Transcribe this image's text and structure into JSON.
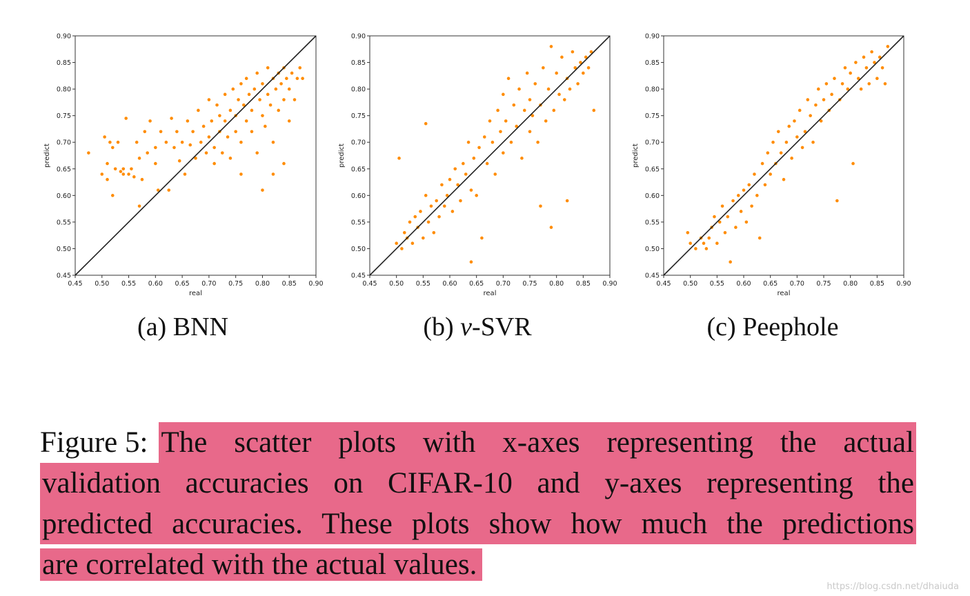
{
  "chart_data": [
    {
      "type": "scatter",
      "title": "",
      "subcaption": "(a) BNN",
      "subcaption_prefix": "(a) ",
      "subcaption_name": "BNN",
      "xlabel": "real",
      "ylabel": "predict",
      "xlim": [
        0.45,
        0.9
      ],
      "ylim": [
        0.45,
        0.9
      ],
      "xticks": [
        "0.45",
        "0.50",
        "0.55",
        "0.60",
        "0.65",
        "0.70",
        "0.75",
        "0.80",
        "0.85",
        "0.90"
      ],
      "yticks": [
        "0.45",
        "0.50",
        "0.55",
        "0.60",
        "0.65",
        "0.70",
        "0.75",
        "0.80",
        "0.85",
        "0.90"
      ],
      "reference_line": [
        [
          0.45,
          0.45
        ],
        [
          0.9,
          0.9
        ]
      ],
      "point_color": "#ff8c00",
      "points": [
        [
          0.475,
          0.68
        ],
        [
          0.5,
          0.64
        ],
        [
          0.505,
          0.71
        ],
        [
          0.51,
          0.66
        ],
        [
          0.51,
          0.63
        ],
        [
          0.515,
          0.7
        ],
        [
          0.52,
          0.69
        ],
        [
          0.52,
          0.6
        ],
        [
          0.525,
          0.65
        ],
        [
          0.53,
          0.7
        ],
        [
          0.535,
          0.645
        ],
        [
          0.54,
          0.64
        ],
        [
          0.54,
          0.65
        ],
        [
          0.545,
          0.745
        ],
        [
          0.55,
          0.64
        ],
        [
          0.555,
          0.65
        ],
        [
          0.56,
          0.635
        ],
        [
          0.565,
          0.7
        ],
        [
          0.57,
          0.67
        ],
        [
          0.57,
          0.58
        ],
        [
          0.575,
          0.63
        ],
        [
          0.58,
          0.72
        ],
        [
          0.585,
          0.68
        ],
        [
          0.59,
          0.74
        ],
        [
          0.6,
          0.66
        ],
        [
          0.6,
          0.69
        ],
        [
          0.605,
          0.61
        ],
        [
          0.61,
          0.72
        ],
        [
          0.62,
          0.7
        ],
        [
          0.625,
          0.61
        ],
        [
          0.63,
          0.745
        ],
        [
          0.635,
          0.69
        ],
        [
          0.64,
          0.72
        ],
        [
          0.645,
          0.665
        ],
        [
          0.65,
          0.7
        ],
        [
          0.655,
          0.64
        ],
        [
          0.66,
          0.74
        ],
        [
          0.665,
          0.695
        ],
        [
          0.67,
          0.72
        ],
        [
          0.675,
          0.67
        ],
        [
          0.68,
          0.76
        ],
        [
          0.685,
          0.7
        ],
        [
          0.69,
          0.73
        ],
        [
          0.695,
          0.68
        ],
        [
          0.7,
          0.78
        ],
        [
          0.7,
          0.71
        ],
        [
          0.705,
          0.74
        ],
        [
          0.71,
          0.69
        ],
        [
          0.71,
          0.66
        ],
        [
          0.715,
          0.77
        ],
        [
          0.72,
          0.72
        ],
        [
          0.72,
          0.75
        ],
        [
          0.725,
          0.68
        ],
        [
          0.73,
          0.79
        ],
        [
          0.73,
          0.74
        ],
        [
          0.735,
          0.71
        ],
        [
          0.74,
          0.76
        ],
        [
          0.74,
          0.67
        ],
        [
          0.745,
          0.8
        ],
        [
          0.75,
          0.75
        ],
        [
          0.75,
          0.72
        ],
        [
          0.755,
          0.78
        ],
        [
          0.76,
          0.81
        ],
        [
          0.76,
          0.7
        ],
        [
          0.765,
          0.77
        ],
        [
          0.77,
          0.74
        ],
        [
          0.77,
          0.82
        ],
        [
          0.775,
          0.79
        ],
        [
          0.78,
          0.76
        ],
        [
          0.78,
          0.72
        ],
        [
          0.785,
          0.8
        ],
        [
          0.79,
          0.83
        ],
        [
          0.79,
          0.68
        ],
        [
          0.795,
          0.78
        ],
        [
          0.8,
          0.81
        ],
        [
          0.8,
          0.75
        ],
        [
          0.805,
          0.73
        ],
        [
          0.81,
          0.84
        ],
        [
          0.81,
          0.79
        ],
        [
          0.815,
          0.77
        ],
        [
          0.82,
          0.82
        ],
        [
          0.82,
          0.7
        ],
        [
          0.825,
          0.8
        ],
        [
          0.83,
          0.83
        ],
        [
          0.83,
          0.76
        ],
        [
          0.835,
          0.81
        ],
        [
          0.84,
          0.84
        ],
        [
          0.84,
          0.78
        ],
        [
          0.845,
          0.82
        ],
        [
          0.85,
          0.8
        ],
        [
          0.85,
          0.74
        ],
        [
          0.855,
          0.83
        ],
        [
          0.86,
          0.78
        ],
        [
          0.865,
          0.82
        ],
        [
          0.87,
          0.84
        ],
        [
          0.875,
          0.82
        ],
        [
          0.8,
          0.61
        ],
        [
          0.82,
          0.64
        ],
        [
          0.76,
          0.64
        ],
        [
          0.84,
          0.66
        ]
      ]
    },
    {
      "type": "scatter",
      "title": "",
      "subcaption": "(b) v-SVR",
      "subcaption_prefix": "(b) ",
      "subcaption_name": "v",
      "subcaption_suffix": "-SVR",
      "xlabel": "real",
      "ylabel": "predict",
      "xlim": [
        0.45,
        0.9
      ],
      "ylim": [
        0.45,
        0.9
      ],
      "xticks": [
        "0.45",
        "0.50",
        "0.55",
        "0.60",
        "0.65",
        "0.70",
        "0.75",
        "0.80",
        "0.85",
        "0.90"
      ],
      "yticks": [
        "0.45",
        "0.50",
        "0.55",
        "0.60",
        "0.65",
        "0.70",
        "0.75",
        "0.80",
        "0.85",
        "0.90"
      ],
      "reference_line": [
        [
          0.45,
          0.45
        ],
        [
          0.9,
          0.9
        ]
      ],
      "point_color": "#ff8c00",
      "points": [
        [
          0.5,
          0.51
        ],
        [
          0.505,
          0.67
        ],
        [
          0.51,
          0.5
        ],
        [
          0.515,
          0.53
        ],
        [
          0.52,
          0.52
        ],
        [
          0.525,
          0.55
        ],
        [
          0.53,
          0.51
        ],
        [
          0.535,
          0.56
        ],
        [
          0.54,
          0.54
        ],
        [
          0.545,
          0.57
        ],
        [
          0.55,
          0.52
        ],
        [
          0.555,
          0.735
        ],
        [
          0.555,
          0.6
        ],
        [
          0.56,
          0.55
        ],
        [
          0.565,
          0.58
        ],
        [
          0.57,
          0.53
        ],
        [
          0.575,
          0.59
        ],
        [
          0.58,
          0.56
        ],
        [
          0.585,
          0.62
        ],
        [
          0.59,
          0.58
        ],
        [
          0.595,
          0.6
        ],
        [
          0.6,
          0.63
        ],
        [
          0.605,
          0.57
        ],
        [
          0.61,
          0.65
        ],
        [
          0.615,
          0.62
        ],
        [
          0.62,
          0.59
        ],
        [
          0.625,
          0.66
        ],
        [
          0.63,
          0.64
        ],
        [
          0.635,
          0.7
        ],
        [
          0.64,
          0.61
        ],
        [
          0.645,
          0.67
        ],
        [
          0.65,
          0.6
        ],
        [
          0.655,
          0.69
        ],
        [
          0.66,
          0.52
        ],
        [
          0.665,
          0.71
        ],
        [
          0.67,
          0.66
        ],
        [
          0.675,
          0.74
        ],
        [
          0.68,
          0.7
        ],
        [
          0.685,
          0.64
        ],
        [
          0.69,
          0.76
        ],
        [
          0.695,
          0.72
        ],
        [
          0.7,
          0.79
        ],
        [
          0.7,
          0.68
        ],
        [
          0.705,
          0.74
        ],
        [
          0.71,
          0.82
        ],
        [
          0.715,
          0.7
        ],
        [
          0.72,
          0.77
        ],
        [
          0.725,
          0.73
        ],
        [
          0.73,
          0.8
        ],
        [
          0.735,
          0.67
        ],
        [
          0.74,
          0.76
        ],
        [
          0.745,
          0.83
        ],
        [
          0.75,
          0.72
        ],
        [
          0.75,
          0.78
        ],
        [
          0.755,
          0.75
        ],
        [
          0.76,
          0.81
        ],
        [
          0.765,
          0.7
        ],
        [
          0.77,
          0.77
        ],
        [
          0.775,
          0.84
        ],
        [
          0.78,
          0.74
        ],
        [
          0.785,
          0.8
        ],
        [
          0.79,
          0.88
        ],
        [
          0.79,
          0.54
        ],
        [
          0.795,
          0.76
        ],
        [
          0.8,
          0.83
        ],
        [
          0.805,
          0.79
        ],
        [
          0.81,
          0.86
        ],
        [
          0.815,
          0.78
        ],
        [
          0.82,
          0.82
        ],
        [
          0.82,
          0.59
        ],
        [
          0.825,
          0.8
        ],
        [
          0.83,
          0.87
        ],
        [
          0.835,
          0.84
        ],
        [
          0.84,
          0.81
        ],
        [
          0.845,
          0.85
        ],
        [
          0.85,
          0.83
        ],
        [
          0.855,
          0.86
        ],
        [
          0.86,
          0.84
        ],
        [
          0.865,
          0.87
        ],
        [
          0.87,
          0.76
        ],
        [
          0.64,
          0.475
        ],
        [
          0.77,
          0.58
        ]
      ]
    },
    {
      "type": "scatter",
      "title": "",
      "subcaption": "(c) Peephole",
      "subcaption_prefix": "(c) ",
      "subcaption_name": "Peephole",
      "xlabel": "real",
      "ylabel": "predict",
      "xlim": [
        0.45,
        0.9
      ],
      "ylim": [
        0.45,
        0.9
      ],
      "xticks": [
        "0.45",
        "0.50",
        "0.55",
        "0.60",
        "0.65",
        "0.70",
        "0.75",
        "0.80",
        "0.85",
        "0.90"
      ],
      "yticks": [
        "0.45",
        "0.50",
        "0.55",
        "0.60",
        "0.65",
        "0.70",
        "0.75",
        "0.80",
        "0.85",
        "0.90"
      ],
      "reference_line": [
        [
          0.45,
          0.45
        ],
        [
          0.9,
          0.9
        ]
      ],
      "point_color": "#ff8c00",
      "points": [
        [
          0.495,
          0.53
        ],
        [
          0.5,
          0.51
        ],
        [
          0.51,
          0.5
        ],
        [
          0.52,
          0.52
        ],
        [
          0.525,
          0.51
        ],
        [
          0.53,
          0.5
        ],
        [
          0.535,
          0.52
        ],
        [
          0.54,
          0.54
        ],
        [
          0.545,
          0.56
        ],
        [
          0.55,
          0.51
        ],
        [
          0.555,
          0.55
        ],
        [
          0.56,
          0.58
        ],
        [
          0.565,
          0.53
        ],
        [
          0.57,
          0.56
        ],
        [
          0.575,
          0.475
        ],
        [
          0.58,
          0.59
        ],
        [
          0.585,
          0.54
        ],
        [
          0.59,
          0.6
        ],
        [
          0.595,
          0.57
        ],
        [
          0.6,
          0.61
        ],
        [
          0.605,
          0.55
        ],
        [
          0.61,
          0.62
        ],
        [
          0.615,
          0.58
        ],
        [
          0.62,
          0.64
        ],
        [
          0.625,
          0.6
        ],
        [
          0.63,
          0.52
        ],
        [
          0.635,
          0.66
        ],
        [
          0.64,
          0.62
        ],
        [
          0.645,
          0.68
        ],
        [
          0.65,
          0.64
        ],
        [
          0.655,
          0.7
        ],
        [
          0.66,
          0.66
        ],
        [
          0.665,
          0.72
        ],
        [
          0.67,
          0.68
        ],
        [
          0.675,
          0.63
        ],
        [
          0.68,
          0.7
        ],
        [
          0.685,
          0.73
        ],
        [
          0.69,
          0.67
        ],
        [
          0.695,
          0.74
        ],
        [
          0.7,
          0.71
        ],
        [
          0.705,
          0.76
        ],
        [
          0.71,
          0.69
        ],
        [
          0.715,
          0.72
        ],
        [
          0.72,
          0.78
        ],
        [
          0.725,
          0.75
        ],
        [
          0.73,
          0.7
        ],
        [
          0.735,
          0.77
        ],
        [
          0.74,
          0.8
        ],
        [
          0.745,
          0.74
        ],
        [
          0.75,
          0.78
        ],
        [
          0.755,
          0.81
        ],
        [
          0.76,
          0.76
        ],
        [
          0.765,
          0.79
        ],
        [
          0.77,
          0.82
        ],
        [
          0.775,
          0.59
        ],
        [
          0.78,
          0.78
        ],
        [
          0.785,
          0.81
        ],
        [
          0.79,
          0.84
        ],
        [
          0.795,
          0.8
        ],
        [
          0.8,
          0.83
        ],
        [
          0.805,
          0.66
        ],
        [
          0.81,
          0.85
        ],
        [
          0.815,
          0.82
        ],
        [
          0.82,
          0.8
        ],
        [
          0.825,
          0.86
        ],
        [
          0.83,
          0.84
        ],
        [
          0.835,
          0.81
        ],
        [
          0.84,
          0.87
        ],
        [
          0.845,
          0.85
        ],
        [
          0.85,
          0.82
        ],
        [
          0.855,
          0.86
        ],
        [
          0.86,
          0.84
        ],
        [
          0.865,
          0.81
        ],
        [
          0.87,
          0.88
        ]
      ]
    }
  ],
  "caption": {
    "label": "Figure 5:",
    "line1": "The scatter plots with x-axes representing the actual",
    "line2": "validation accuracies on CIFAR-10 and y-axes representing the",
    "line3": "predicted accuracies. These plots show how much the predictions",
    "line4": "are correlated with the actual values."
  },
  "watermark": "https://blog.csdn.net/dhaiuda",
  "colors": {
    "highlight": "#e8698a",
    "points": "#ff8c00",
    "line": "#222222"
  }
}
